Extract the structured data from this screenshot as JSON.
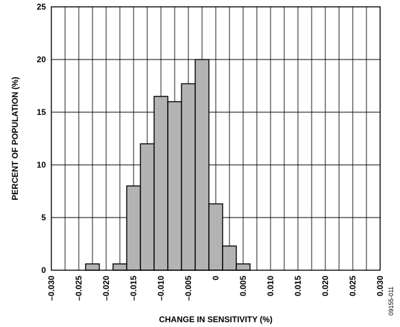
{
  "chart_data": {
    "type": "bar",
    "xlabel": "CHANGE IN SENSITIVITY (%)",
    "ylabel": "PERCENT OF POPULATION (%)",
    "xlim": [
      -0.03,
      0.03
    ],
    "ylim": [
      0,
      25
    ],
    "grid": true,
    "bar_color": "#b3b3b3",
    "bar_width": 0.0025,
    "x_ticks": [
      "–0.030",
      "–0.025",
      "–0.020",
      "–0.015",
      "–0.010",
      "–0.005",
      "0",
      "0.005",
      "0.010",
      "0.015",
      "0.020",
      "0.025",
      "0.030"
    ],
    "y_ticks": [
      "0",
      "5",
      "10",
      "15",
      "20",
      "25"
    ],
    "x_tick_values": [
      -0.03,
      -0.025,
      -0.02,
      -0.015,
      -0.01,
      -0.005,
      0,
      0.005,
      0.01,
      0.015,
      0.02,
      0.025,
      0.03
    ],
    "y_tick_values": [
      0,
      5,
      10,
      15,
      20,
      25
    ],
    "bins": [
      {
        "x": -0.0225,
        "value": 0.6
      },
      {
        "x": -0.0175,
        "value": 0.6
      },
      {
        "x": -0.015,
        "value": 8.0
      },
      {
        "x": -0.0125,
        "value": 12.0
      },
      {
        "x": -0.01,
        "value": 16.5
      },
      {
        "x": -0.0075,
        "value": 16.0
      },
      {
        "x": -0.005,
        "value": 17.7
      },
      {
        "x": -0.0025,
        "value": 20.0
      },
      {
        "x": 0.0,
        "value": 6.3
      },
      {
        "x": 0.0025,
        "value": 2.3
      },
      {
        "x": 0.005,
        "value": 0.6
      }
    ],
    "code": "09155-011"
  }
}
